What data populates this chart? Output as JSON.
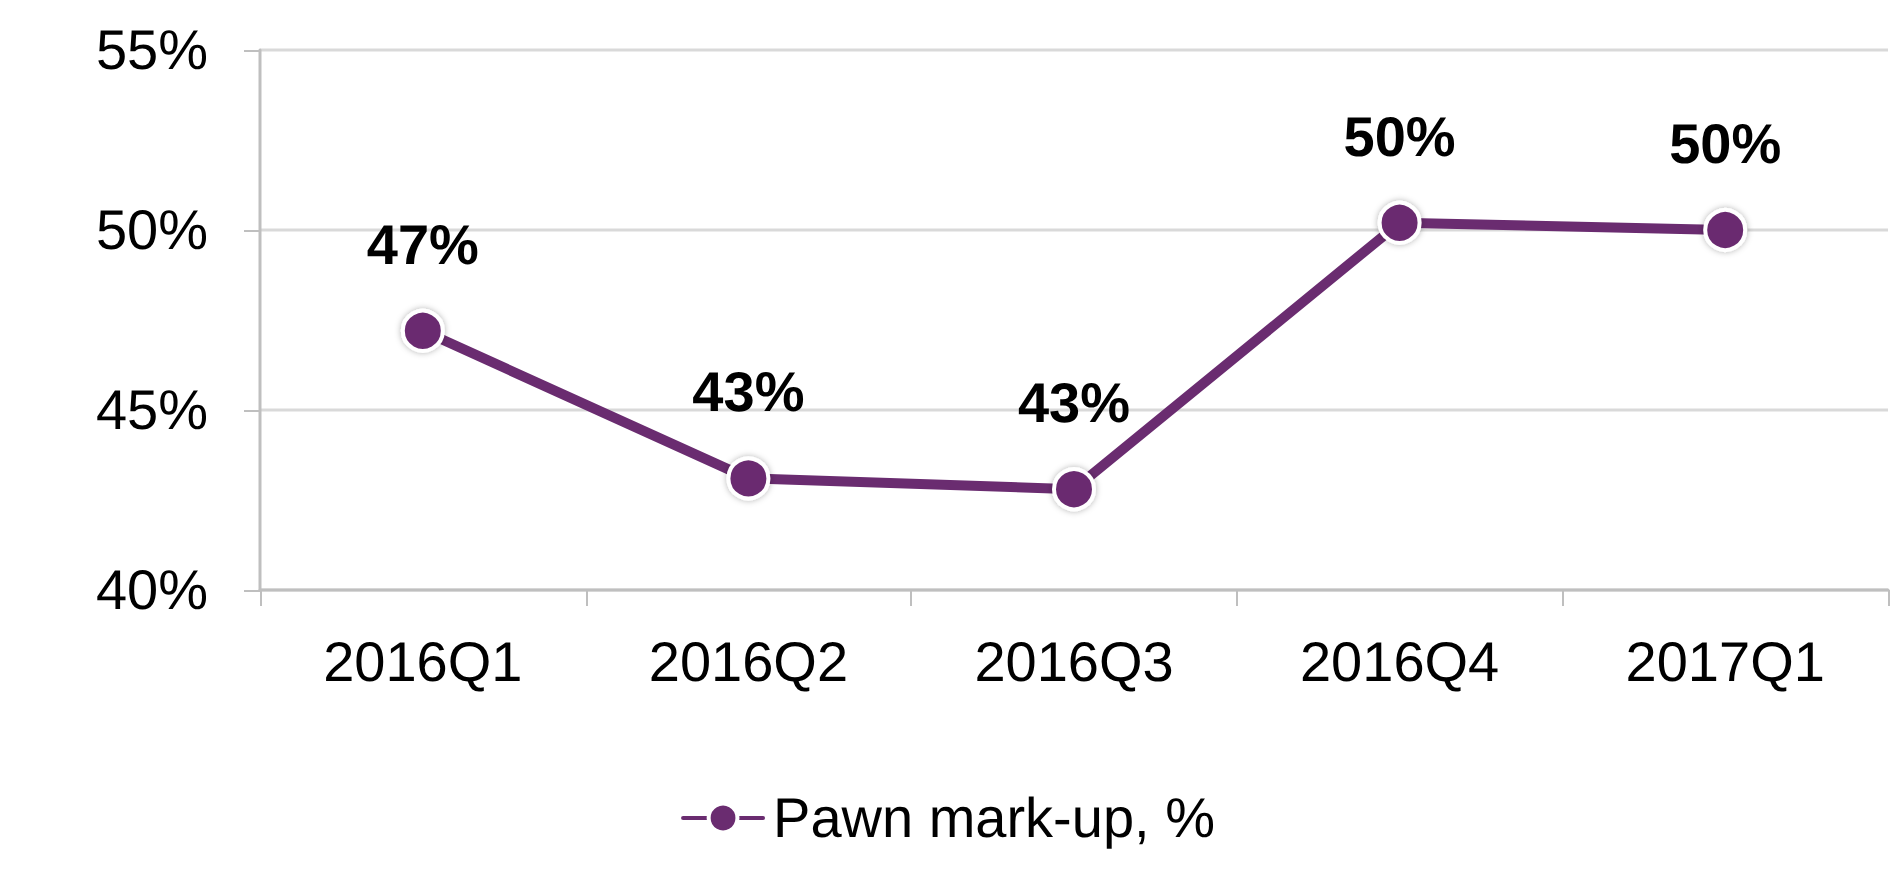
{
  "chart_data": {
    "type": "line",
    "categories": [
      "2016Q1",
      "2016Q2",
      "2016Q3",
      "2016Q4",
      "2017Q1"
    ],
    "series": [
      {
        "name": "Pawn mark-up, %",
        "color": "#6a2c70",
        "values": [
          47.2,
          43.1,
          42.8,
          50.2,
          50.0
        ],
        "value_labels": [
          "47%",
          "43%",
          "43%",
          "50%",
          "50%"
        ]
      }
    ],
    "ylim": [
      40,
      55
    ],
    "yticks": [
      {
        "value": 40,
        "label": "40%"
      },
      {
        "value": 45,
        "label": "45%"
      },
      {
        "value": 50,
        "label": "50%"
      },
      {
        "value": 55,
        "label": "55%"
      }
    ],
    "grid": "y",
    "legend": "bottom",
    "marker": "circle",
    "line_style": "solid"
  }
}
